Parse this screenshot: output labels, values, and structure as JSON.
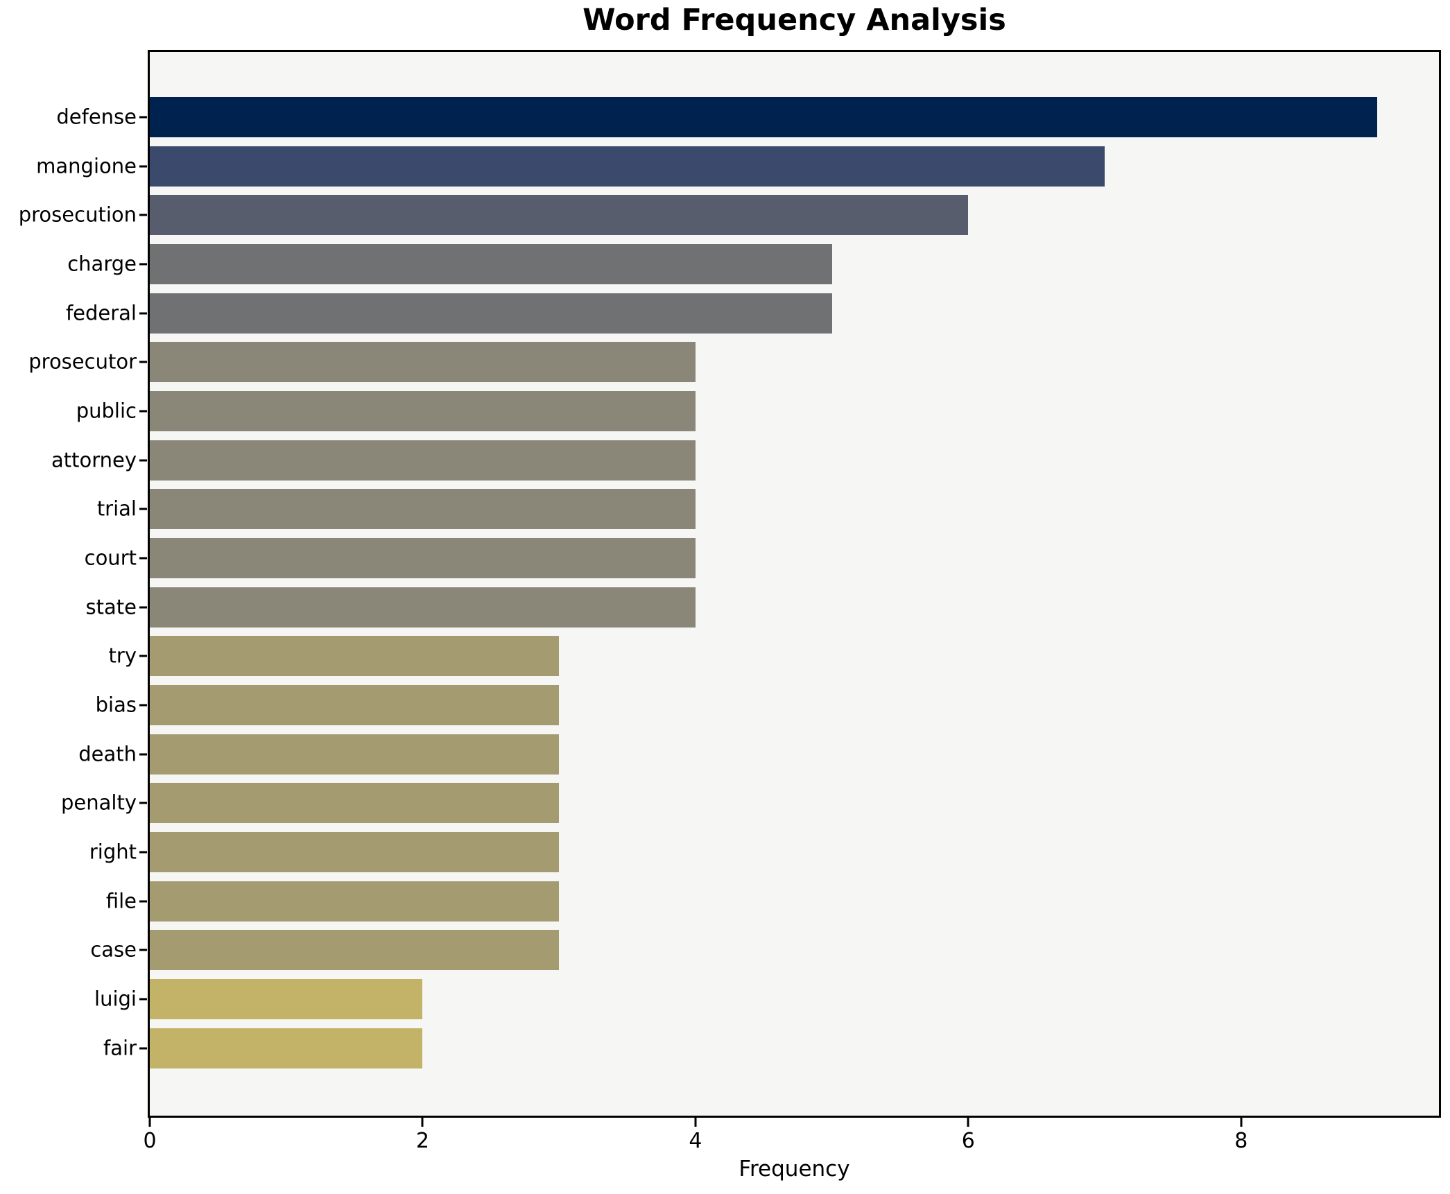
{
  "title": "Word Frequency Analysis",
  "chart_data": {
    "type": "bar",
    "orientation": "horizontal",
    "title": "Word Frequency Analysis",
    "xlabel": "Frequency",
    "ylabel": "",
    "categories": [
      "defense",
      "mangione",
      "prosecution",
      "charge",
      "federal",
      "prosecutor",
      "public",
      "attorney",
      "trial",
      "court",
      "state",
      "try",
      "bias",
      "death",
      "penalty",
      "right",
      "file",
      "case",
      "luigi",
      "fair"
    ],
    "values": [
      9,
      7,
      6,
      5,
      5,
      4,
      4,
      4,
      4,
      4,
      4,
      3,
      3,
      3,
      3,
      3,
      3,
      3,
      2,
      2
    ],
    "xlim": [
      0,
      9.45
    ],
    "xticks": [
      0,
      2,
      4,
      6,
      8
    ],
    "grid": false,
    "legend": null,
    "colors_by_value": {
      "9": "#00224e",
      "7": "#3b496c",
      "6": "#575d6d",
      "5": "#707172",
      "4": "#8a8778",
      "3": "#a49b71",
      "2": "#c3b369"
    },
    "plot_background": "#f6f6f5",
    "figure_background": "#ffffff",
    "spine_color": "#000000"
  }
}
